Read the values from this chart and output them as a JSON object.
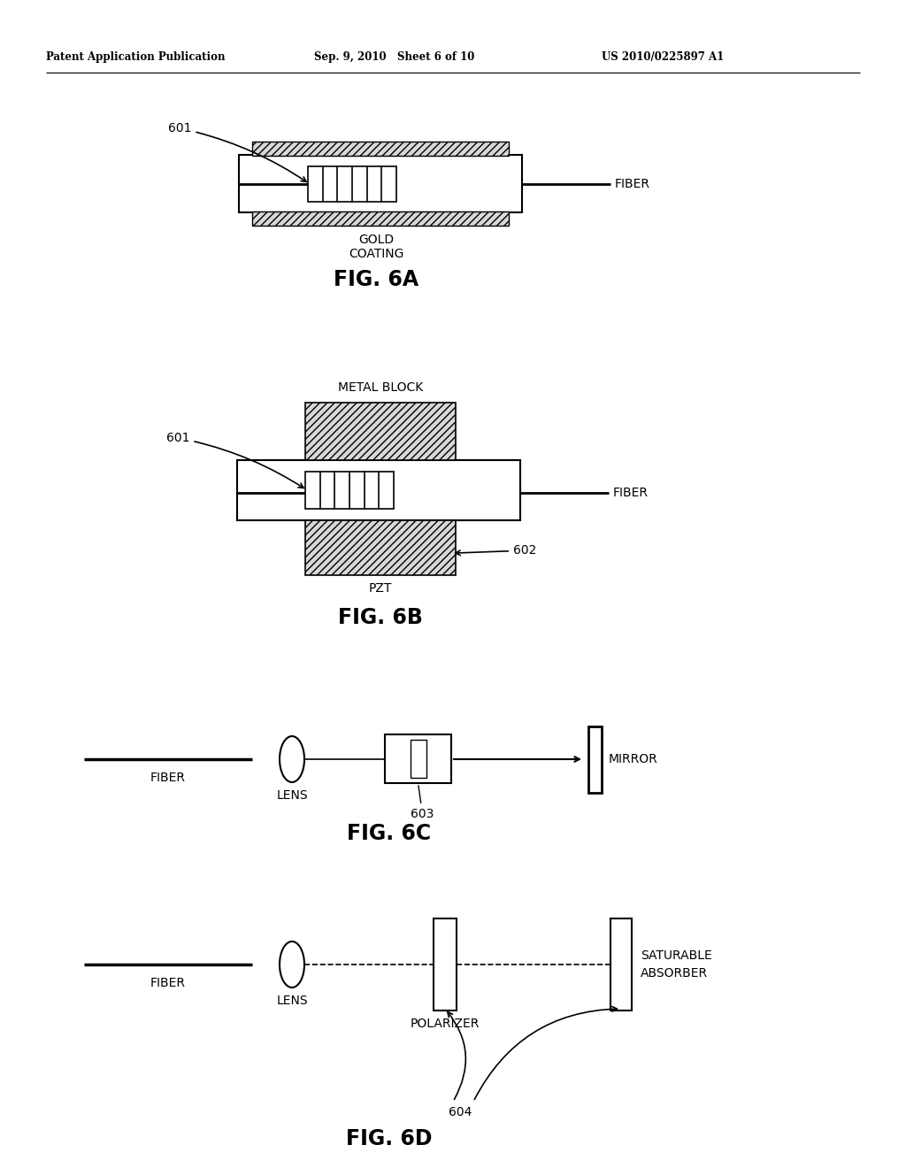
{
  "bg_color": "#ffffff",
  "text_color": "#000000",
  "header_left": "Patent Application Publication",
  "header_mid": "Sep. 9, 2010   Sheet 6 of 10",
  "header_right": "US 2010/0225897 A1",
  "fig6a_label": "FIG. 6A",
  "fig6b_label": "FIG. 6B",
  "fig6c_label": "FIG. 6C",
  "fig6d_label": "FIG. 6D"
}
